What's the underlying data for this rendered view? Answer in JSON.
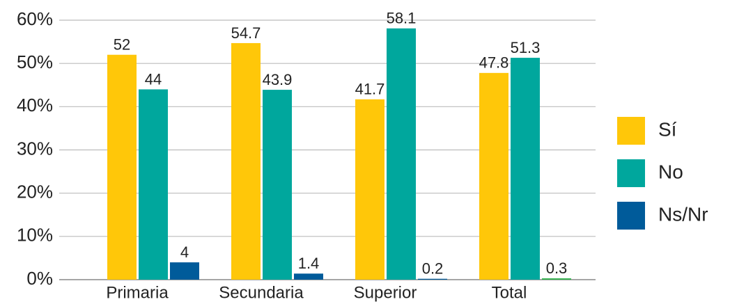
{
  "chart_data": {
    "type": "bar",
    "categories": [
      "Primaria",
      "Secundaria",
      "Superior",
      "Total"
    ],
    "series": [
      {
        "name": "Sí",
        "color": "#ffc709",
        "values": [
          52,
          54.7,
          41.7,
          47.8
        ]
      },
      {
        "name": "No",
        "color": "#00a79d",
        "values": [
          44,
          43.9,
          58.1,
          51.3
        ]
      },
      {
        "name": "Ns/Nr",
        "color": "#005b9a",
        "colors": [
          "#005b9a",
          "#005b9a",
          "#005b9a",
          "#2fb24a"
        ],
        "values": [
          4,
          1.4,
          0.2,
          0.3
        ]
      }
    ],
    "ylim": [
      0,
      60
    ],
    "yticks": [
      {
        "value": 0,
        "label": "0%"
      },
      {
        "value": 10,
        "label": "10%"
      },
      {
        "value": 20,
        "label": "20%"
      },
      {
        "value": 30,
        "label": "30%"
      },
      {
        "value": 40,
        "label": "40%"
      },
      {
        "value": 50,
        "label": "50%"
      },
      {
        "value": 60,
        "label": "60%"
      }
    ],
    "grid": true,
    "legend": "right"
  }
}
